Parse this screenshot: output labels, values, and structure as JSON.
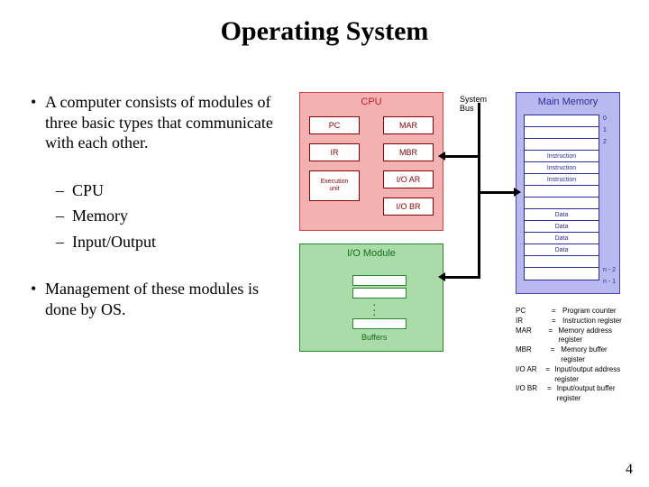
{
  "title": "Operating System",
  "bullets": {
    "b1": "A computer consists of modules of three basic types that communicate with each other.",
    "sub1": "CPU",
    "sub2": "Memory",
    "sub3": "Input/Output",
    "b2": "Management of these modules is done by OS."
  },
  "diagram": {
    "cpu": {
      "label": "CPU",
      "pc": "PC",
      "mar": "MAR",
      "ir": "IR",
      "mbr": "MBR",
      "exec": "Execution\nunit",
      "ioar": "I/O AR",
      "iobr": "I/O BR",
      "bg": "#f4b1b1",
      "border": "#c44444"
    },
    "io": {
      "label": "I/O Module",
      "buffers": "Buffers",
      "bg": "#a9dca9",
      "border": "#2a8a2a"
    },
    "mem": {
      "label": "Main Memory",
      "cells": [
        "",
        "",
        "",
        "Instruction",
        "Instruction",
        "Instruction",
        "",
        "",
        "Data",
        "Data",
        "Data",
        "Data",
        "",
        ""
      ],
      "idx0": "0",
      "idx1": "1",
      "idx2": "2",
      "idxn2": "n - 2",
      "idxn1": "n - 1",
      "bg": "#b9b9ef",
      "border": "#4646b0"
    },
    "bus": {
      "label": "System\nBus"
    },
    "legend": [
      {
        "k": "PC",
        "v": "Program counter"
      },
      {
        "k": "IR",
        "v": "Instruction register"
      },
      {
        "k": "MAR",
        "v": "Memory address register"
      },
      {
        "k": "MBR",
        "v": "Memory buffer register"
      },
      {
        "k": "I/O AR",
        "v": "Input/output address register"
      },
      {
        "k": "I/O BR",
        "v": "Input/output buffer register"
      }
    ]
  },
  "page": "4"
}
